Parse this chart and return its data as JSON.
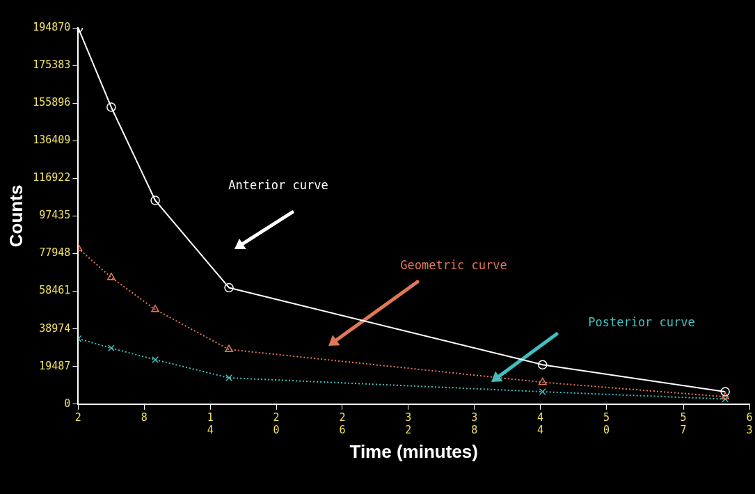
{
  "chart_data": {
    "type": "line",
    "xlabel": "Time (minutes)",
    "ylabel": "Counts",
    "xlim": [
      2,
      63
    ],
    "xticks": [
      2,
      8,
      14,
      20,
      26,
      32,
      38,
      44,
      50,
      57,
      63
    ],
    "ylim": [
      0,
      194870
    ],
    "yticks": [
      0,
      19487,
      38974,
      58461,
      77948,
      97435,
      116922,
      136409,
      155896,
      175383,
      194870
    ],
    "grid": false,
    "legend": false,
    "series": [
      {
        "color": "#ffffff",
        "marker": "circle",
        "line_style": "solid",
        "x": [
          2,
          5,
          9,
          15.7,
          44.2,
          60.8
        ],
        "values": [
          194870,
          153800,
          105500,
          60300,
          20400,
          6400
        ]
      },
      {
        "color": "#e07858",
        "marker": "triangle",
        "line_style": "dotted",
        "x": [
          2,
          5,
          9,
          15.7,
          44.2,
          60.8
        ],
        "values": [
          80700,
          65600,
          49000,
          28300,
          11300,
          3800
        ]
      },
      {
        "color": "#40c0c0",
        "marker": "cross",
        "line_style": "dotted",
        "x": [
          2,
          5,
          9,
          15.7,
          44.2,
          60.8
        ],
        "values": [
          33900,
          29000,
          23000,
          13600,
          6400,
          2600
        ]
      }
    ],
    "annotations": [
      "Anterior curve",
      "Geometric curve",
      "Posterior curve"
    ]
  }
}
